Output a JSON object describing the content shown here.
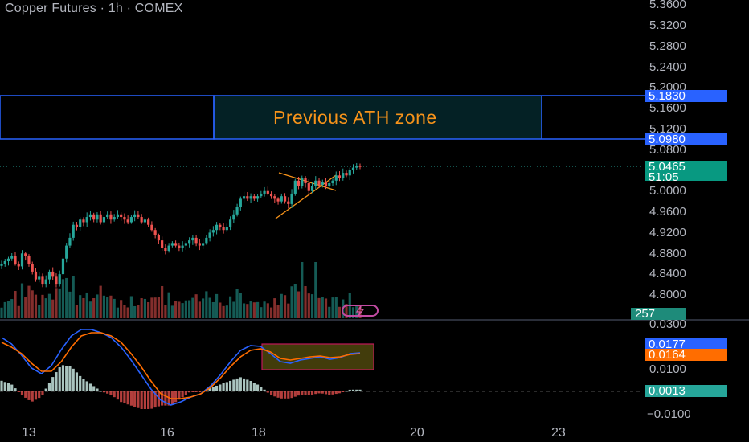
{
  "header": {
    "title": "Copper Futures · 1h · COMEX"
  },
  "annotation": {
    "ath_zone_label": "Previous ATH zone"
  },
  "price_axis": {
    "ticks": [
      "5.3600",
      "5.3200",
      "5.2800",
      "5.2400",
      "5.2000",
      "5.1600",
      "5.1200",
      "5.0800",
      "5.0000",
      "4.9600",
      "4.9200",
      "4.8800",
      "4.8400",
      "4.8000"
    ]
  },
  "badges": {
    "ath_top": "5.1830",
    "ath_bottom": "5.0980",
    "last_price": "5.0465",
    "countdown": "51:05",
    "volume": "257",
    "macd_line": "0.0177",
    "signal_line": "0.0164",
    "histogram": "0.0013"
  },
  "macd_axis": {
    "ticks": [
      "0.0300",
      "0.0100",
      "−0.0100"
    ]
  },
  "time_axis": {
    "ticks": [
      "13",
      "16",
      "18",
      "20",
      "23"
    ]
  },
  "colors": {
    "up": "#26a69a",
    "down": "#ef5350",
    "macd": "#2962ff",
    "signal": "#ff6d00",
    "zone": "#2962ff",
    "label": "#f7931a"
  },
  "icons": {
    "replay": "flash-icon"
  },
  "chart_data": {
    "type": "candlestick",
    "ylim": [
      4.77,
      5.37
    ],
    "ath_zone": [
      5.098,
      5.183
    ],
    "last": 5.0465,
    "closes": [
      4.86,
      4.865,
      4.87,
      4.875,
      4.86,
      4.855,
      4.88,
      4.875,
      4.86,
      4.845,
      4.83,
      4.835,
      4.82,
      4.83,
      4.845,
      4.835,
      4.82,
      4.84,
      4.87,
      4.895,
      4.91,
      4.935,
      4.93,
      4.945,
      4.94,
      4.95,
      4.955,
      4.945,
      4.955,
      4.94,
      4.95,
      4.955,
      4.945,
      4.95,
      4.955,
      4.95,
      4.945,
      4.94,
      4.95,
      4.955,
      4.95,
      4.94,
      4.945,
      4.935,
      4.925,
      4.915,
      4.905,
      4.89,
      4.885,
      4.895,
      4.9,
      4.895,
      4.89,
      4.895,
      4.9,
      4.905,
      4.91,
      4.9,
      4.895,
      4.9,
      4.91,
      4.92,
      4.925,
      4.935,
      4.93,
      4.925,
      4.93,
      4.945,
      4.955,
      4.97,
      4.985,
      4.99,
      4.985,
      4.99,
      4.985,
      4.99,
      4.995,
      5.0,
      4.995,
      4.99,
      4.985,
      4.98,
      4.99,
      4.98,
      4.975,
      4.995,
      5.02,
      5.01,
      5.025,
      5.015,
      5.0,
      5.01,
      5.02,
      5.012,
      5.018,
      5.01,
      5.015,
      5.02,
      5.03,
      5.025,
      5.035,
      5.03,
      5.04,
      5.045,
      5.048,
      5.0465
    ]
  }
}
